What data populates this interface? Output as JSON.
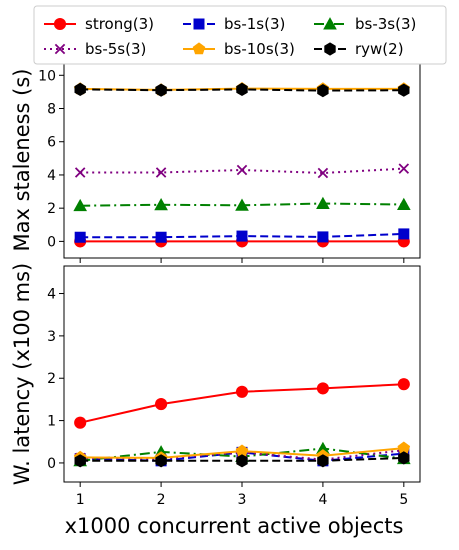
{
  "chart_data": [
    {
      "type": "line",
      "panel": "top",
      "x": [
        1,
        2,
        3,
        4,
        5
      ],
      "ylabel": "Max staleness (s)",
      "ylim": [
        -1,
        10.8
      ],
      "yticks": [
        0,
        2,
        4,
        6,
        8,
        10
      ],
      "grid": false,
      "series": [
        {
          "name": "strong(3)",
          "values": [
            0,
            0,
            0,
            0,
            0
          ]
        },
        {
          "name": "bs-1s(3)",
          "values": [
            0.25,
            0.25,
            0.32,
            0.27,
            0.45
          ]
        },
        {
          "name": "bs-3s(3)",
          "values": [
            2.15,
            2.2,
            2.17,
            2.28,
            2.22
          ]
        },
        {
          "name": "bs-5s(3)",
          "values": [
            4.15,
            4.15,
            4.3,
            4.12,
            4.38
          ]
        },
        {
          "name": "bs-10s(3)",
          "values": [
            9.18,
            9.12,
            9.2,
            9.18,
            9.18
          ]
        },
        {
          "name": "ryw(2)",
          "values": [
            9.15,
            9.1,
            9.15,
            9.08,
            9.1
          ]
        }
      ]
    },
    {
      "type": "line",
      "panel": "bottom",
      "x": [
        1,
        2,
        3,
        4,
        5
      ],
      "xlabel": "x1000 concurrent active objects",
      "ylabel": "W. latency (x100 ms)",
      "ylim": [
        -0.45,
        4.65
      ],
      "yticks": [
        0,
        1,
        2,
        3,
        4
      ],
      "grid": false,
      "series": [
        {
          "name": "strong(3)",
          "values": [
            0.95,
            1.39,
            1.68,
            1.76,
            1.86
          ]
        },
        {
          "name": "bs-1s(3)",
          "values": [
            0.1,
            0.05,
            0.25,
            0.05,
            0.22
          ]
        },
        {
          "name": "bs-3s(3)",
          "values": [
            0.05,
            0.26,
            0.15,
            0.34,
            0.1
          ]
        },
        {
          "name": "bs-5s(3)",
          "values": [
            0.12,
            0.1,
            0.25,
            0.08,
            0.3
          ]
        },
        {
          "name": "bs-10s(3)",
          "values": [
            0.13,
            0.12,
            0.28,
            0.17,
            0.35
          ]
        },
        {
          "name": "ryw(2)",
          "values": [
            0.05,
            0.05,
            0.05,
            0.05,
            0.12
          ]
        }
      ]
    }
  ],
  "legend": {
    "placement": "top",
    "columns": 3,
    "entries": [
      "strong(3)",
      "bs-1s(3)",
      "bs-3s(3)",
      "bs-5s(3)",
      "bs-10s(3)",
      "ryw(2)"
    ]
  },
  "series_styles": {
    "strong(3)": {
      "color": "#ff0000",
      "dash": "",
      "marker": "circle"
    },
    "bs-1s(3)": {
      "color": "#0000cc",
      "dash": "8,4",
      "marker": "square"
    },
    "bs-3s(3)": {
      "color": "#008000",
      "dash": "10,4,2,4",
      "marker": "triangle"
    },
    "bs-5s(3)": {
      "color": "#800080",
      "dash": "2,4",
      "marker": "x"
    },
    "bs-10s(3)": {
      "color": "#ffa500",
      "dash": "",
      "marker": "pentagon"
    },
    "ryw(2)": {
      "color": "#000000",
      "dash": "8,4",
      "marker": "hexagon"
    }
  }
}
